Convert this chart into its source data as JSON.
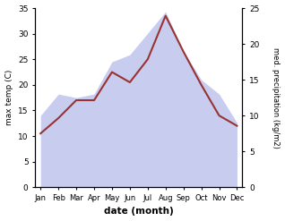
{
  "months": [
    "Jan",
    "Feb",
    "Mar",
    "Apr",
    "May",
    "Jun",
    "Jul",
    "Aug",
    "Sep",
    "Oct",
    "Nov",
    "Dec"
  ],
  "temperature": [
    10.5,
    13.5,
    17.0,
    17.0,
    22.5,
    20.5,
    25.0,
    33.5,
    26.5,
    20.0,
    14.0,
    12.0
  ],
  "precipitation": [
    10.0,
    13.0,
    12.5,
    13.0,
    17.5,
    18.5,
    21.5,
    24.5,
    19.0,
    15.0,
    13.0,
    9.0
  ],
  "temp_color": "#993333",
  "precip_fill_color": "#c8ccee",
  "temp_ylim": [
    0,
    35
  ],
  "precip_ylim": [
    0,
    25
  ],
  "temp_yticks": [
    0,
    5,
    10,
    15,
    20,
    25,
    30,
    35
  ],
  "precip_yticks": [
    0,
    5,
    10,
    15,
    20,
    25
  ],
  "xlabel": "date (month)",
  "ylabel_left": "max temp (C)",
  "ylabel_right": "med. precipitation (kg/m2)",
  "bg_color": "#ffffff"
}
